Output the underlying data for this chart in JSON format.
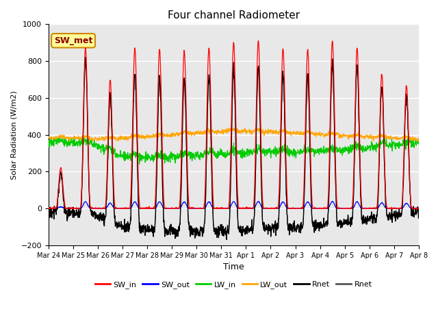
{
  "title": "Four channel Radiometer",
  "xlabel": "Time",
  "ylabel": "Solar Radiation (W/m2)",
  "ylim": [
    -200,
    1000
  ],
  "annotation": "SW_met",
  "annotation_color": "#8B0000",
  "annotation_bg": "#FFFF99",
  "annotation_edge": "#CC8800",
  "tick_labels": [
    "Mar 24",
    "Mar 25",
    "Mar 26",
    "Mar 27",
    "Mar 28",
    "Mar 29",
    "Mar 30",
    "Mar 31",
    "Apr 1",
    "Apr 2",
    "Apr 3",
    "Apr 4",
    "Apr 5",
    "Apr 6",
    "Apr 7",
    "Apr 8"
  ],
  "colors": {
    "SW_in": "#FF0000",
    "SW_out": "#0000FF",
    "LW_in": "#00CC00",
    "LW_out": "#FFA500",
    "Rnet_black": "#000000",
    "Rnet_dark": "#555555"
  },
  "background_color": "#E8E8E8",
  "grid_color": "#FFFFFF",
  "title_fontsize": 11,
  "axis_fontsize": 9,
  "ylabel_fontsize": 8,
  "tick_fontsize": 7,
  "legend_fontsize": 8
}
